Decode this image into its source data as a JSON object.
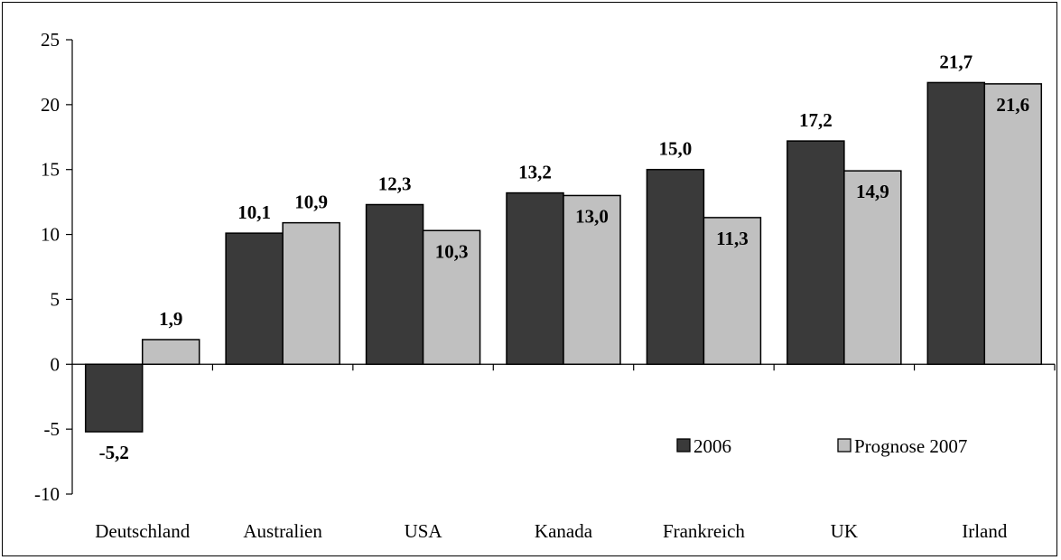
{
  "chart_data": {
    "type": "bar",
    "categories": [
      "Deutschland",
      "Australien",
      "USA",
      "Kanada",
      "Frankreich",
      "UK",
      "Irland"
    ],
    "series": [
      {
        "name": "2006",
        "values": [
          -5.2,
          10.1,
          12.3,
          13.2,
          15.0,
          17.2,
          21.7
        ],
        "labels": [
          "-5,2",
          "10,1",
          "12,3",
          "13,2",
          "15,0",
          "17,2",
          "21,7"
        ]
      },
      {
        "name": "Prognose 2007",
        "values": [
          1.9,
          10.9,
          10.3,
          13.0,
          11.3,
          14.9,
          21.6
        ],
        "labels": [
          "1,9",
          "10,9",
          "10,3",
          "13,0",
          "11,3",
          "14,9",
          "21,6"
        ]
      }
    ],
    "ylim": [
      -10,
      25
    ],
    "yticks": [
      -10,
      -5,
      0,
      5,
      10,
      15,
      20,
      25
    ],
    "ytick_labels": [
      "-10",
      "-5",
      "0",
      "5",
      "10",
      "15",
      "20",
      "25"
    ],
    "title": "",
    "xlabel": "",
    "ylabel": "",
    "grid": false,
    "legend_position": "bottom-right",
    "colors": {
      "2006": "#3a3a3a",
      "Prognose 2007": "#c0c0c0"
    }
  }
}
